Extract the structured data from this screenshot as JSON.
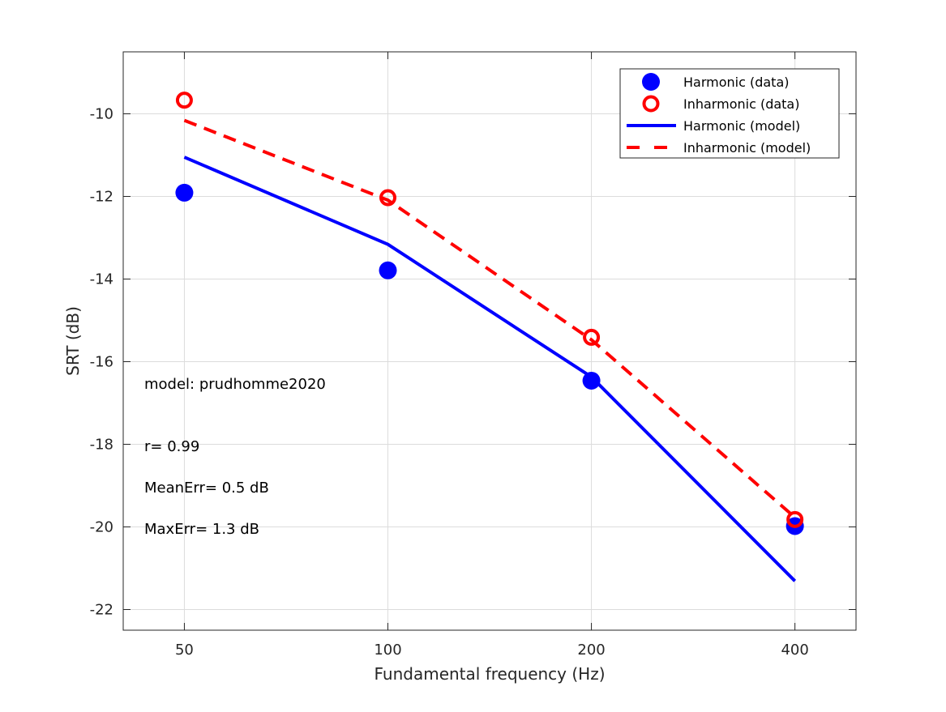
{
  "chart_data": {
    "type": "line",
    "title": "",
    "xlabel": "Fundamental frequency (Hz)",
    "ylabel": "SRT (dB)",
    "x": [
      50,
      100,
      200,
      400
    ],
    "x_tick_labels": [
      "50",
      "100",
      "200",
      "400"
    ],
    "x_scale": "log",
    "xlim": [
      40.6,
      492.5
    ],
    "ylim": [
      -22.5,
      -8.5
    ],
    "y_ticks": [
      -22,
      -20,
      -18,
      -16,
      -14,
      -12,
      -10
    ],
    "y_tick_labels": [
      "-22",
      "-20",
      "-18",
      "-16",
      "-14",
      "-12",
      "-10"
    ],
    "grid": true,
    "legend_placement": "top-right",
    "series": [
      {
        "name": "Harmonic (data)",
        "kind": "marker-filled",
        "color": "#0000ff",
        "values": [
          -11.91,
          -13.79,
          -16.46,
          -19.98
        ]
      },
      {
        "name": "Inharmonic (data)",
        "kind": "marker-open",
        "color": "#ff0000",
        "values": [
          -9.67,
          -12.03,
          -15.41,
          -19.82
        ]
      },
      {
        "name": "Harmonic (model)",
        "kind": "line-solid",
        "color": "#0000ff",
        "values": [
          -11.05,
          -13.16,
          -16.37,
          -21.31
        ]
      },
      {
        "name": "Inharmonic (model)",
        "kind": "line-dashed",
        "color": "#ff0000",
        "values": [
          -10.16,
          -12.09,
          -15.47,
          -19.77
        ]
      }
    ],
    "annotations": [
      "model: prudhomme2020",
      "r= 0.99",
      "MeanErr= 0.5 dB",
      "MaxErr= 1.3 dB"
    ]
  }
}
